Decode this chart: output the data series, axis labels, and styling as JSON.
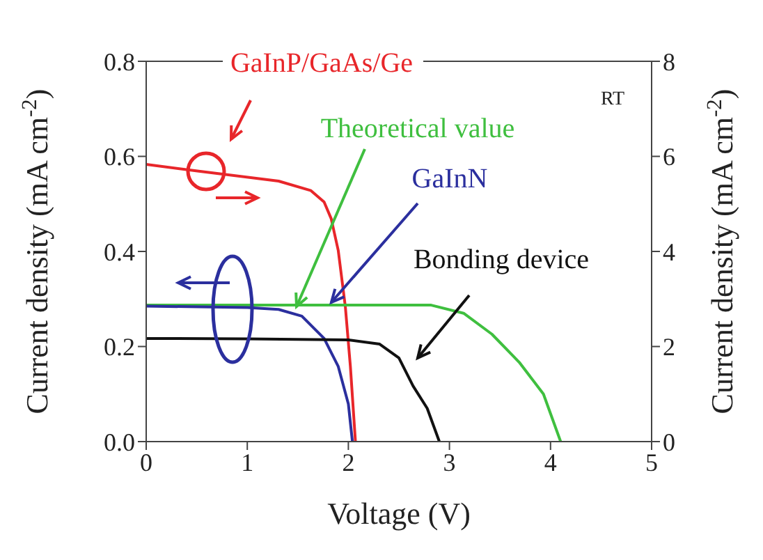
{
  "chart_data": {
    "type": "line",
    "xlabel": "Voltage (V)",
    "ylabel": "Current density (mA cm$^{-2}$)",
    "y2label": "Current density (mA cm$^{-2}$)",
    "xlim": [
      0,
      5
    ],
    "xticks": [
      0,
      1,
      2,
      3,
      4,
      5
    ],
    "ylim": [
      0,
      0.8
    ],
    "yticks": [
      {
        "value": 0,
        "label": "0.0"
      },
      0.2,
      0.4,
      0.6,
      0.8
    ],
    "y2lim": [
      0,
      8
    ],
    "y2ticks": [
      0,
      2,
      4,
      6,
      8
    ],
    "marker": "none",
    "line_style": "solid",
    "annotations": [
      "RT"
    ],
    "series": [
      {
        "name": "GaInP/GaAs/Ge",
        "color": "#e8262a",
        "axis": "y2",
        "x": [
          0,
          0.52,
          1.31,
          1.63,
          1.76,
          1.83,
          1.9,
          1.97,
          2.02,
          2.07
        ],
        "values": [
          5.83,
          5.69,
          5.48,
          5.28,
          5.04,
          4.69,
          4.02,
          2.84,
          1.58,
          0
        ]
      },
      {
        "name": "Theoretical value",
        "color": "#3fbf3f",
        "x": [
          0,
          1,
          2,
          2.82,
          3.14,
          3.42,
          3.69,
          3.93,
          4.1
        ],
        "values": [
          0.287,
          0.287,
          0.287,
          0.287,
          0.27,
          0.226,
          0.167,
          0.1,
          0
        ]
      },
      {
        "name": "GaInN",
        "color": "#2b2f9e",
        "x": [
          0,
          1,
          1.31,
          1.54,
          1.76,
          1.9,
          2,
          2.04
        ],
        "values": [
          0.285,
          0.282,
          0.278,
          0.264,
          0.217,
          0.158,
          0.079,
          0
        ]
      },
      {
        "name": "Bonding device",
        "color": "#111111",
        "x": [
          0,
          1,
          2,
          2.31,
          2.5,
          2.64,
          2.78,
          2.9
        ],
        "values": [
          0.217,
          0.216,
          0.214,
          0.205,
          0.176,
          0.117,
          0.07,
          0
        ]
      }
    ]
  }
}
